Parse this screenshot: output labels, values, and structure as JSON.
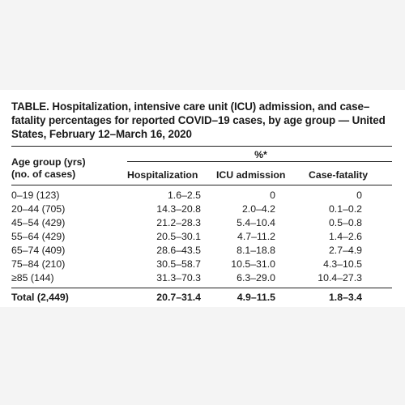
{
  "table": {
    "title": "TABLE. Hospitalization, intensive care unit (ICU) admission, and case–fatality percentages for reported COVID–19 cases, by age group — United States, February 12–March 16, 2020",
    "header": {
      "group_label_line1": "Age group (yrs)",
      "group_label_line2": "(no. of cases)",
      "spanner": "%*",
      "columns": [
        "Hospitalization",
        "ICU admission",
        "Case-fatality"
      ]
    },
    "rows": [
      {
        "group": "0–19 (123)",
        "hosp": "1.6–2.5",
        "icu": "0",
        "fatality": "0"
      },
      {
        "group": "20–44 (705)",
        "hosp": "14.3–20.8",
        "icu": "2.0–4.2",
        "fatality": "0.1–0.2"
      },
      {
        "group": "45–54 (429)",
        "hosp": "21.2–28.3",
        "icu": "5.4–10.4",
        "fatality": "0.5–0.8"
      },
      {
        "group": "55–64 (429)",
        "hosp": "20.5–30.1",
        "icu": "4.7–11.2",
        "fatality": "1.4–2.6"
      },
      {
        "group": "65–74 (409)",
        "hosp": "28.6–43.5",
        "icu": "8.1–18.8",
        "fatality": "2.7–4.9"
      },
      {
        "group": "75–84 (210)",
        "hosp": "30.5–58.7",
        "icu": "10.5–31.0",
        "fatality": "4.3–10.5"
      },
      {
        "group": "≥85 (144)",
        "hosp": "31.3–70.3",
        "icu": "6.3–29.0",
        "fatality": "10.4–27.3"
      }
    ],
    "total": {
      "group": "Total (2,449)",
      "hosp": "20.7–31.4",
      "icu": "4.9–11.5",
      "fatality": "1.8–3.4"
    }
  }
}
